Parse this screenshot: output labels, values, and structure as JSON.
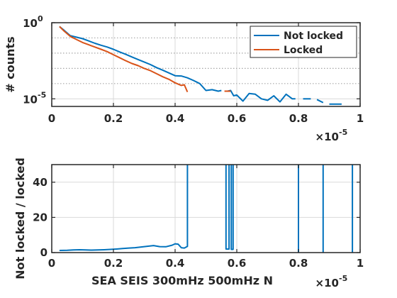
{
  "figure": {
    "xlabel_shared": "SEA SEIS 300mHz 500mHz N"
  },
  "chart_data": [
    {
      "type": "line",
      "title": "",
      "xlabel": "",
      "ylabel": "# counts",
      "x_multiplier": "×10",
      "x_exponent": "-5",
      "xlim": [
        0,
        1
      ],
      "ylim_log10": [
        -5.5,
        0
      ],
      "yscale": "log",
      "xticks": [
        0,
        0.2,
        0.4,
        0.6,
        0.8,
        1
      ],
      "xticklabels": [
        "0",
        "0.2",
        "0.4",
        "0.6",
        "0.8",
        "1"
      ],
      "yticks_log10": [
        -5,
        0
      ],
      "ytick_base": "10",
      "ytick_exps": [
        "-5",
        "0"
      ],
      "minor_gridlines_log10": [
        -1,
        -2,
        -3,
        -4
      ],
      "grid": true,
      "legend_position": "top-right",
      "series": [
        {
          "name": "Not locked",
          "color": "#0072BD",
          "segments": [
            [
              [
                0.025,
                -0.25
              ],
              [
                0.04,
                -0.5
              ],
              [
                0.06,
                -0.85
              ],
              [
                0.08,
                -0.95
              ],
              [
                0.1,
                -1.05
              ],
              [
                0.12,
                -1.2
              ],
              [
                0.14,
                -1.35
              ],
              [
                0.16,
                -1.48
              ],
              [
                0.18,
                -1.6
              ],
              [
                0.2,
                -1.75
              ],
              [
                0.22,
                -1.92
              ],
              [
                0.24,
                -2.08
              ],
              [
                0.26,
                -2.25
              ],
              [
                0.28,
                -2.42
              ],
              [
                0.3,
                -2.58
              ],
              [
                0.32,
                -2.75
              ],
              [
                0.34,
                -2.95
              ],
              [
                0.36,
                -3.12
              ],
              [
                0.38,
                -3.3
              ],
              [
                0.4,
                -3.48
              ],
              [
                0.42,
                -3.5
              ],
              [
                0.44,
                -3.62
              ],
              [
                0.46,
                -3.8
              ],
              [
                0.48,
                -4.0
              ],
              [
                0.5,
                -4.45
              ],
              [
                0.52,
                -4.4
              ],
              [
                0.54,
                -4.5
              ],
              [
                0.55,
                -4.45
              ]
            ],
            [
              [
                0.57,
                -4.5
              ],
              [
                0.58,
                -4.45
              ],
              [
                0.59,
                -4.8
              ],
              [
                0.6,
                -4.75
              ],
              [
                0.62,
                -5.15
              ],
              [
                0.64,
                -4.65
              ],
              [
                0.66,
                -4.7
              ],
              [
                0.68,
                -5.0
              ],
              [
                0.7,
                -5.1
              ],
              [
                0.72,
                -4.8
              ],
              [
                0.74,
                -5.2
              ],
              [
                0.76,
                -4.7
              ],
              [
                0.78,
                -5.0
              ],
              [
                0.79,
                -5.0
              ]
            ],
            [
              [
                0.815,
                -5.0
              ],
              [
                0.84,
                -5.0
              ]
            ],
            [
              [
                0.86,
                -5.05
              ],
              [
                0.88,
                -5.25
              ]
            ],
            [
              [
                0.9,
                -5.35
              ],
              [
                0.94,
                -5.35
              ]
            ]
          ]
        },
        {
          "name": "Locked",
          "color": "#D95319",
          "segments": [
            [
              [
                0.025,
                -0.25
              ],
              [
                0.04,
                -0.55
              ],
              [
                0.06,
                -0.9
              ],
              [
                0.08,
                -1.1
              ],
              [
                0.1,
                -1.3
              ],
              [
                0.12,
                -1.45
              ],
              [
                0.14,
                -1.6
              ],
              [
                0.16,
                -1.75
              ],
              [
                0.18,
                -1.9
              ],
              [
                0.2,
                -2.1
              ],
              [
                0.22,
                -2.3
              ],
              [
                0.24,
                -2.5
              ],
              [
                0.26,
                -2.68
              ],
              [
                0.28,
                -2.82
              ],
              [
                0.3,
                -3.0
              ],
              [
                0.32,
                -3.15
              ],
              [
                0.34,
                -3.35
              ],
              [
                0.36,
                -3.55
              ],
              [
                0.38,
                -3.72
              ],
              [
                0.4,
                -3.95
              ],
              [
                0.42,
                -4.12
              ],
              [
                0.43,
                -4.08
              ],
              [
                0.44,
                -4.55
              ]
            ],
            [
              [
                0.56,
                -4.5
              ],
              [
                0.58,
                -4.5
              ]
            ]
          ]
        }
      ]
    },
    {
      "type": "line",
      "title": "",
      "xlabel": "SEA SEIS 300mHz 500mHz N",
      "ylabel": "Not locked / locked",
      "x_multiplier": "×10",
      "x_exponent": "-5",
      "xlim": [
        0,
        1
      ],
      "ylim": [
        0,
        50
      ],
      "xticks": [
        0,
        0.2,
        0.4,
        0.6,
        0.8,
        1
      ],
      "xticklabels": [
        "0",
        "0.2",
        "0.4",
        "0.6",
        "0.8",
        "1"
      ],
      "yticks": [
        0,
        20,
        40
      ],
      "yticklabels": [
        "0",
        "20",
        "40"
      ],
      "grid": true,
      "series": [
        {
          "name": "",
          "color": "#0072BD",
          "segments": [
            [
              [
                0.025,
                1.2
              ],
              [
                0.05,
                1.3
              ],
              [
                0.07,
                1.5
              ],
              [
                0.09,
                1.6
              ],
              [
                0.11,
                1.5
              ],
              [
                0.13,
                1.4
              ],
              [
                0.15,
                1.5
              ],
              [
                0.17,
                1.6
              ],
              [
                0.19,
                1.8
              ],
              [
                0.21,
                2.0
              ],
              [
                0.23,
                2.3
              ],
              [
                0.25,
                2.6
              ],
              [
                0.27,
                2.8
              ],
              [
                0.29,
                3.2
              ],
              [
                0.31,
                3.6
              ],
              [
                0.33,
                4.0
              ],
              [
                0.35,
                3.4
              ],
              [
                0.37,
                3.3
              ],
              [
                0.39,
                4.2
              ],
              [
                0.4,
                5.0
              ],
              [
                0.41,
                4.8
              ],
              [
                0.42,
                2.8
              ],
              [
                0.43,
                2.6
              ],
              [
                0.44,
                3.5
              ],
              [
                0.44,
                50
              ]
            ],
            [
              [
                0.565,
                50
              ],
              [
                0.565,
                2.0
              ],
              [
                0.575,
                2.0
              ],
              [
                0.575,
                50
              ]
            ],
            [
              [
                0.582,
                50
              ],
              [
                0.582,
                1.8
              ],
              [
                0.588,
                1.8
              ],
              [
                0.588,
                50
              ]
            ],
            [
              [
                0.8,
                50
              ],
              [
                0.8,
                0
              ]
            ],
            [
              [
                0.88,
                50
              ],
              [
                0.88,
                0
              ]
            ],
            [
              [
                0.975,
                50
              ],
              [
                0.975,
                0
              ]
            ]
          ]
        }
      ]
    }
  ]
}
